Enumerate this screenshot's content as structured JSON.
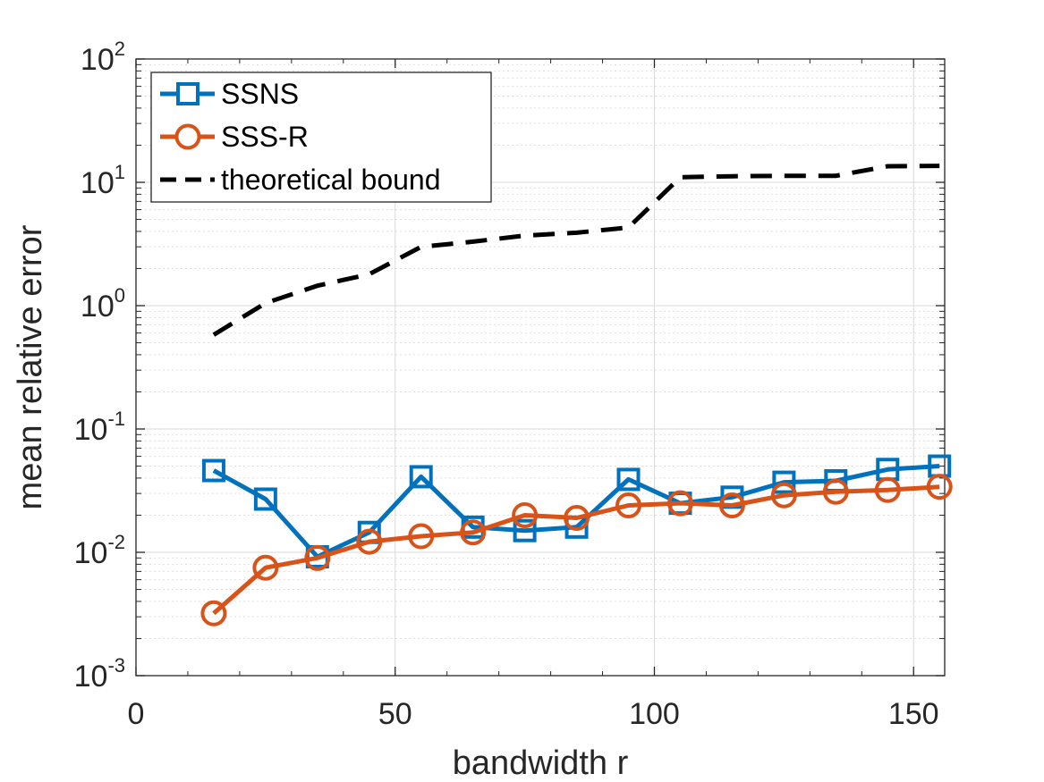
{
  "chart_data": {
    "type": "line",
    "title": "",
    "xlabel": "bandwidth r",
    "ylabel": "mean relative error",
    "yscale": "log",
    "xlim": [
      0,
      156
    ],
    "ylim": [
      0.001,
      100
    ],
    "xticks": [
      0,
      50,
      100,
      150
    ],
    "xtick_labels": [
      "0",
      "50",
      "100",
      "150"
    ],
    "yticks": [
      0.001,
      0.01,
      0.1,
      1,
      10,
      100
    ],
    "ytick_labels": [
      {
        "base": "10",
        "exp": "-3"
      },
      {
        "base": "10",
        "exp": "-2"
      },
      {
        "base": "10",
        "exp": "-1"
      },
      {
        "base": "10",
        "exp": "0"
      },
      {
        "base": "10",
        "exp": "1"
      },
      {
        "base": "10",
        "exp": "2"
      }
    ],
    "grid": true,
    "legend_position": "top-left",
    "x": [
      15,
      25,
      35,
      45,
      55,
      65,
      75,
      85,
      95,
      105,
      115,
      125,
      135,
      145,
      155
    ],
    "series": [
      {
        "name": "SSNS",
        "color": "#0072BD",
        "marker": "square",
        "style": "solid",
        "values": [
          0.046,
          0.027,
          0.0092,
          0.0145,
          0.041,
          0.016,
          0.015,
          0.016,
          0.039,
          0.025,
          0.028,
          0.037,
          0.038,
          0.047,
          0.05
        ]
      },
      {
        "name": "SSS-R",
        "color": "#D95319",
        "marker": "circle",
        "style": "solid",
        "values": [
          0.0032,
          0.0075,
          0.009,
          0.0122,
          0.0135,
          0.0145,
          0.02,
          0.019,
          0.024,
          0.025,
          0.024,
          0.029,
          0.031,
          0.032,
          0.034
        ]
      },
      {
        "name": "theoretical bound",
        "color": "#000000",
        "marker": "none",
        "style": "dashed",
        "values": [
          0.58,
          1.05,
          1.45,
          1.8,
          3.0,
          3.3,
          3.7,
          3.9,
          4.3,
          11.0,
          11.2,
          11.3,
          11.3,
          13.5,
          13.6
        ]
      }
    ]
  }
}
